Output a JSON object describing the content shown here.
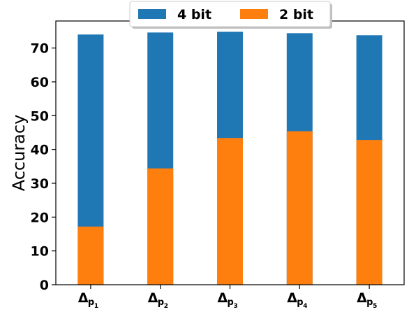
{
  "chart_data": {
    "type": "bar",
    "stacked": false,
    "categories": [
      {
        "main": "Δ",
        "sub": "p",
        "subsub": "1"
      },
      {
        "main": "Δ",
        "sub": "p",
        "subsub": "2"
      },
      {
        "main": "Δ",
        "sub": "p",
        "subsub": "3"
      },
      {
        "main": "Δ",
        "sub": "p",
        "subsub": "4"
      },
      {
        "main": "Δ",
        "sub": "p",
        "subsub": "5"
      }
    ],
    "series": [
      {
        "name": "4 bit",
        "color": "#1f77b4",
        "values": [
          74.0,
          74.6,
          74.8,
          74.4,
          73.8
        ]
      },
      {
        "name": "2 bit",
        "color": "#ff7f0e",
        "values": [
          17.2,
          34.4,
          43.4,
          45.4,
          42.8
        ]
      }
    ],
    "title": "",
    "xlabel": "",
    "ylabel": "Accuracy",
    "ylim": [
      0,
      78
    ],
    "yticks": [
      "0",
      "10",
      "20",
      "30",
      "40",
      "50",
      "60",
      "70"
    ],
    "grid": false,
    "legend_position": "top-center"
  }
}
